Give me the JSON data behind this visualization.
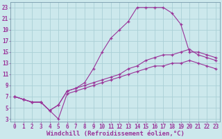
{
  "xlabel": "Windchill (Refroidissement éolien,°C)",
  "bg_color": "#cce8ec",
  "grid_color": "#aacfd6",
  "line_color": "#993399",
  "line1_x": [
    0,
    1,
    2,
    3,
    4,
    5,
    6,
    7,
    8,
    9,
    10,
    11,
    12,
    13,
    14,
    15,
    16,
    17,
    18,
    19,
    20,
    21,
    22,
    23
  ],
  "line1_y": [
    7,
    6.5,
    6,
    6,
    4.5,
    5.5,
    8,
    8.5,
    9.5,
    12,
    15,
    17.5,
    19,
    20.5,
    23,
    23,
    23,
    23,
    22,
    20,
    15,
    15,
    14.5,
    14
  ],
  "line2_x": [
    0,
    1,
    2,
    3,
    4,
    5,
    6,
    7,
    8,
    9,
    10,
    11,
    12,
    13,
    14,
    15,
    16,
    17,
    18,
    19,
    20,
    21,
    22,
    23
  ],
  "line2_y": [
    7,
    6.5,
    6,
    6,
    4.5,
    5.5,
    8,
    8.5,
    9,
    9.5,
    10,
    10.5,
    11,
    12,
    12.5,
    13.5,
    14,
    14.5,
    14.5,
    15,
    15.5,
    14.5,
    14,
    13.5
  ],
  "line3_x": [
    0,
    1,
    2,
    3,
    4,
    5,
    6,
    7,
    8,
    9,
    10,
    11,
    12,
    13,
    14,
    15,
    16,
    17,
    18,
    19,
    20,
    21,
    22,
    23
  ],
  "line3_y": [
    7,
    6.5,
    6,
    6,
    4.5,
    3,
    7.5,
    8,
    8.5,
    9,
    9.5,
    10,
    10.5,
    11,
    11.5,
    12,
    12.5,
    12.5,
    13,
    13,
    13.5,
    13,
    12.5,
    12
  ],
  "xlim": [
    -0.5,
    23.5
  ],
  "ylim": [
    2.5,
    24
  ],
  "xticks": [
    0,
    1,
    2,
    3,
    4,
    5,
    6,
    7,
    8,
    9,
    10,
    11,
    12,
    13,
    14,
    15,
    16,
    17,
    18,
    19,
    20,
    21,
    22,
    23
  ],
  "yticks": [
    3,
    5,
    7,
    9,
    11,
    13,
    15,
    17,
    19,
    21,
    23
  ],
  "tick_fontsize": 5.5,
  "xlabel_fontsize": 6.5
}
